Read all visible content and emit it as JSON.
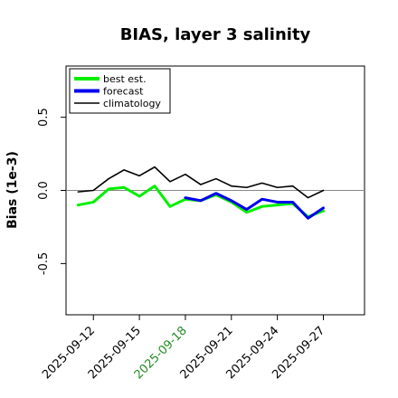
{
  "chart_data": {
    "type": "line",
    "title": "BIAS, layer 3 salinity",
    "ylabel": "Bias (1e-3)",
    "xlabel": "",
    "ylim": [
      -0.85,
      0.85
    ],
    "y_ticks": [
      {
        "value": 0.5,
        "label": "0.5"
      },
      {
        "value": 0.0,
        "label": "0.0"
      },
      {
        "value": -0.5,
        "label": "-0.5"
      }
    ],
    "x_range": [
      0,
      16
    ],
    "x_ticks": [
      {
        "index": 2,
        "label": "2025-09-12",
        "color": "#000000"
      },
      {
        "index": 5,
        "label": "2025-09-15",
        "color": "#000000"
      },
      {
        "index": 8,
        "label": "2025-09-18",
        "color": "#228b22"
      },
      {
        "index": 11,
        "label": "2025-09-21",
        "color": "#000000"
      },
      {
        "index": 14,
        "label": "2025-09-24",
        "color": "#000000"
      },
      {
        "index": 17,
        "label": "2025-09-27",
        "color": "#000000"
      }
    ],
    "reference_line": 0.0,
    "legend_position": "top-left",
    "series": [
      {
        "name": "best est.",
        "color": "#00ee00",
        "width": 3,
        "x": [
          "2025-09-11",
          "2025-09-12",
          "2025-09-13",
          "2025-09-14",
          "2025-09-15",
          "2025-09-16",
          "2025-09-17",
          "2025-09-18",
          "2025-09-19",
          "2025-09-20",
          "2025-09-21",
          "2025-09-22",
          "2025-09-23",
          "2025-09-24",
          "2025-09-25",
          "2025-09-26",
          "2025-09-27"
        ],
        "values": [
          -0.1,
          -0.08,
          0.01,
          0.02,
          -0.04,
          0.03,
          -0.11,
          -0.06,
          -0.07,
          -0.03,
          -0.08,
          -0.15,
          -0.11,
          -0.1,
          -0.09,
          -0.18,
          -0.14
        ]
      },
      {
        "name": "forecast",
        "color": "#0000ee",
        "width": 3,
        "x": [
          "2025-09-18",
          "2025-09-19",
          "2025-09-20",
          "2025-09-21",
          "2025-09-22",
          "2025-09-23",
          "2025-09-24",
          "2025-09-25",
          "2025-09-26",
          "2025-09-27"
        ],
        "values": [
          -0.05,
          -0.07,
          -0.02,
          -0.07,
          -0.13,
          -0.06,
          -0.08,
          -0.08,
          -0.19,
          -0.12
        ]
      },
      {
        "name": "climatology",
        "color": "#000000",
        "width": 1.6,
        "x": [
          "2025-09-11",
          "2025-09-12",
          "2025-09-13",
          "2025-09-14",
          "2025-09-15",
          "2025-09-16",
          "2025-09-17",
          "2025-09-18",
          "2025-09-19",
          "2025-09-20",
          "2025-09-21",
          "2025-09-22",
          "2025-09-23",
          "2025-09-24",
          "2025-09-25",
          "2025-09-26",
          "2025-09-27"
        ],
        "values": [
          -0.01,
          0.0,
          0.08,
          0.14,
          0.1,
          0.16,
          0.06,
          0.11,
          0.04,
          0.08,
          0.03,
          0.02,
          0.05,
          0.02,
          0.03,
          -0.05,
          0.0
        ]
      }
    ]
  }
}
